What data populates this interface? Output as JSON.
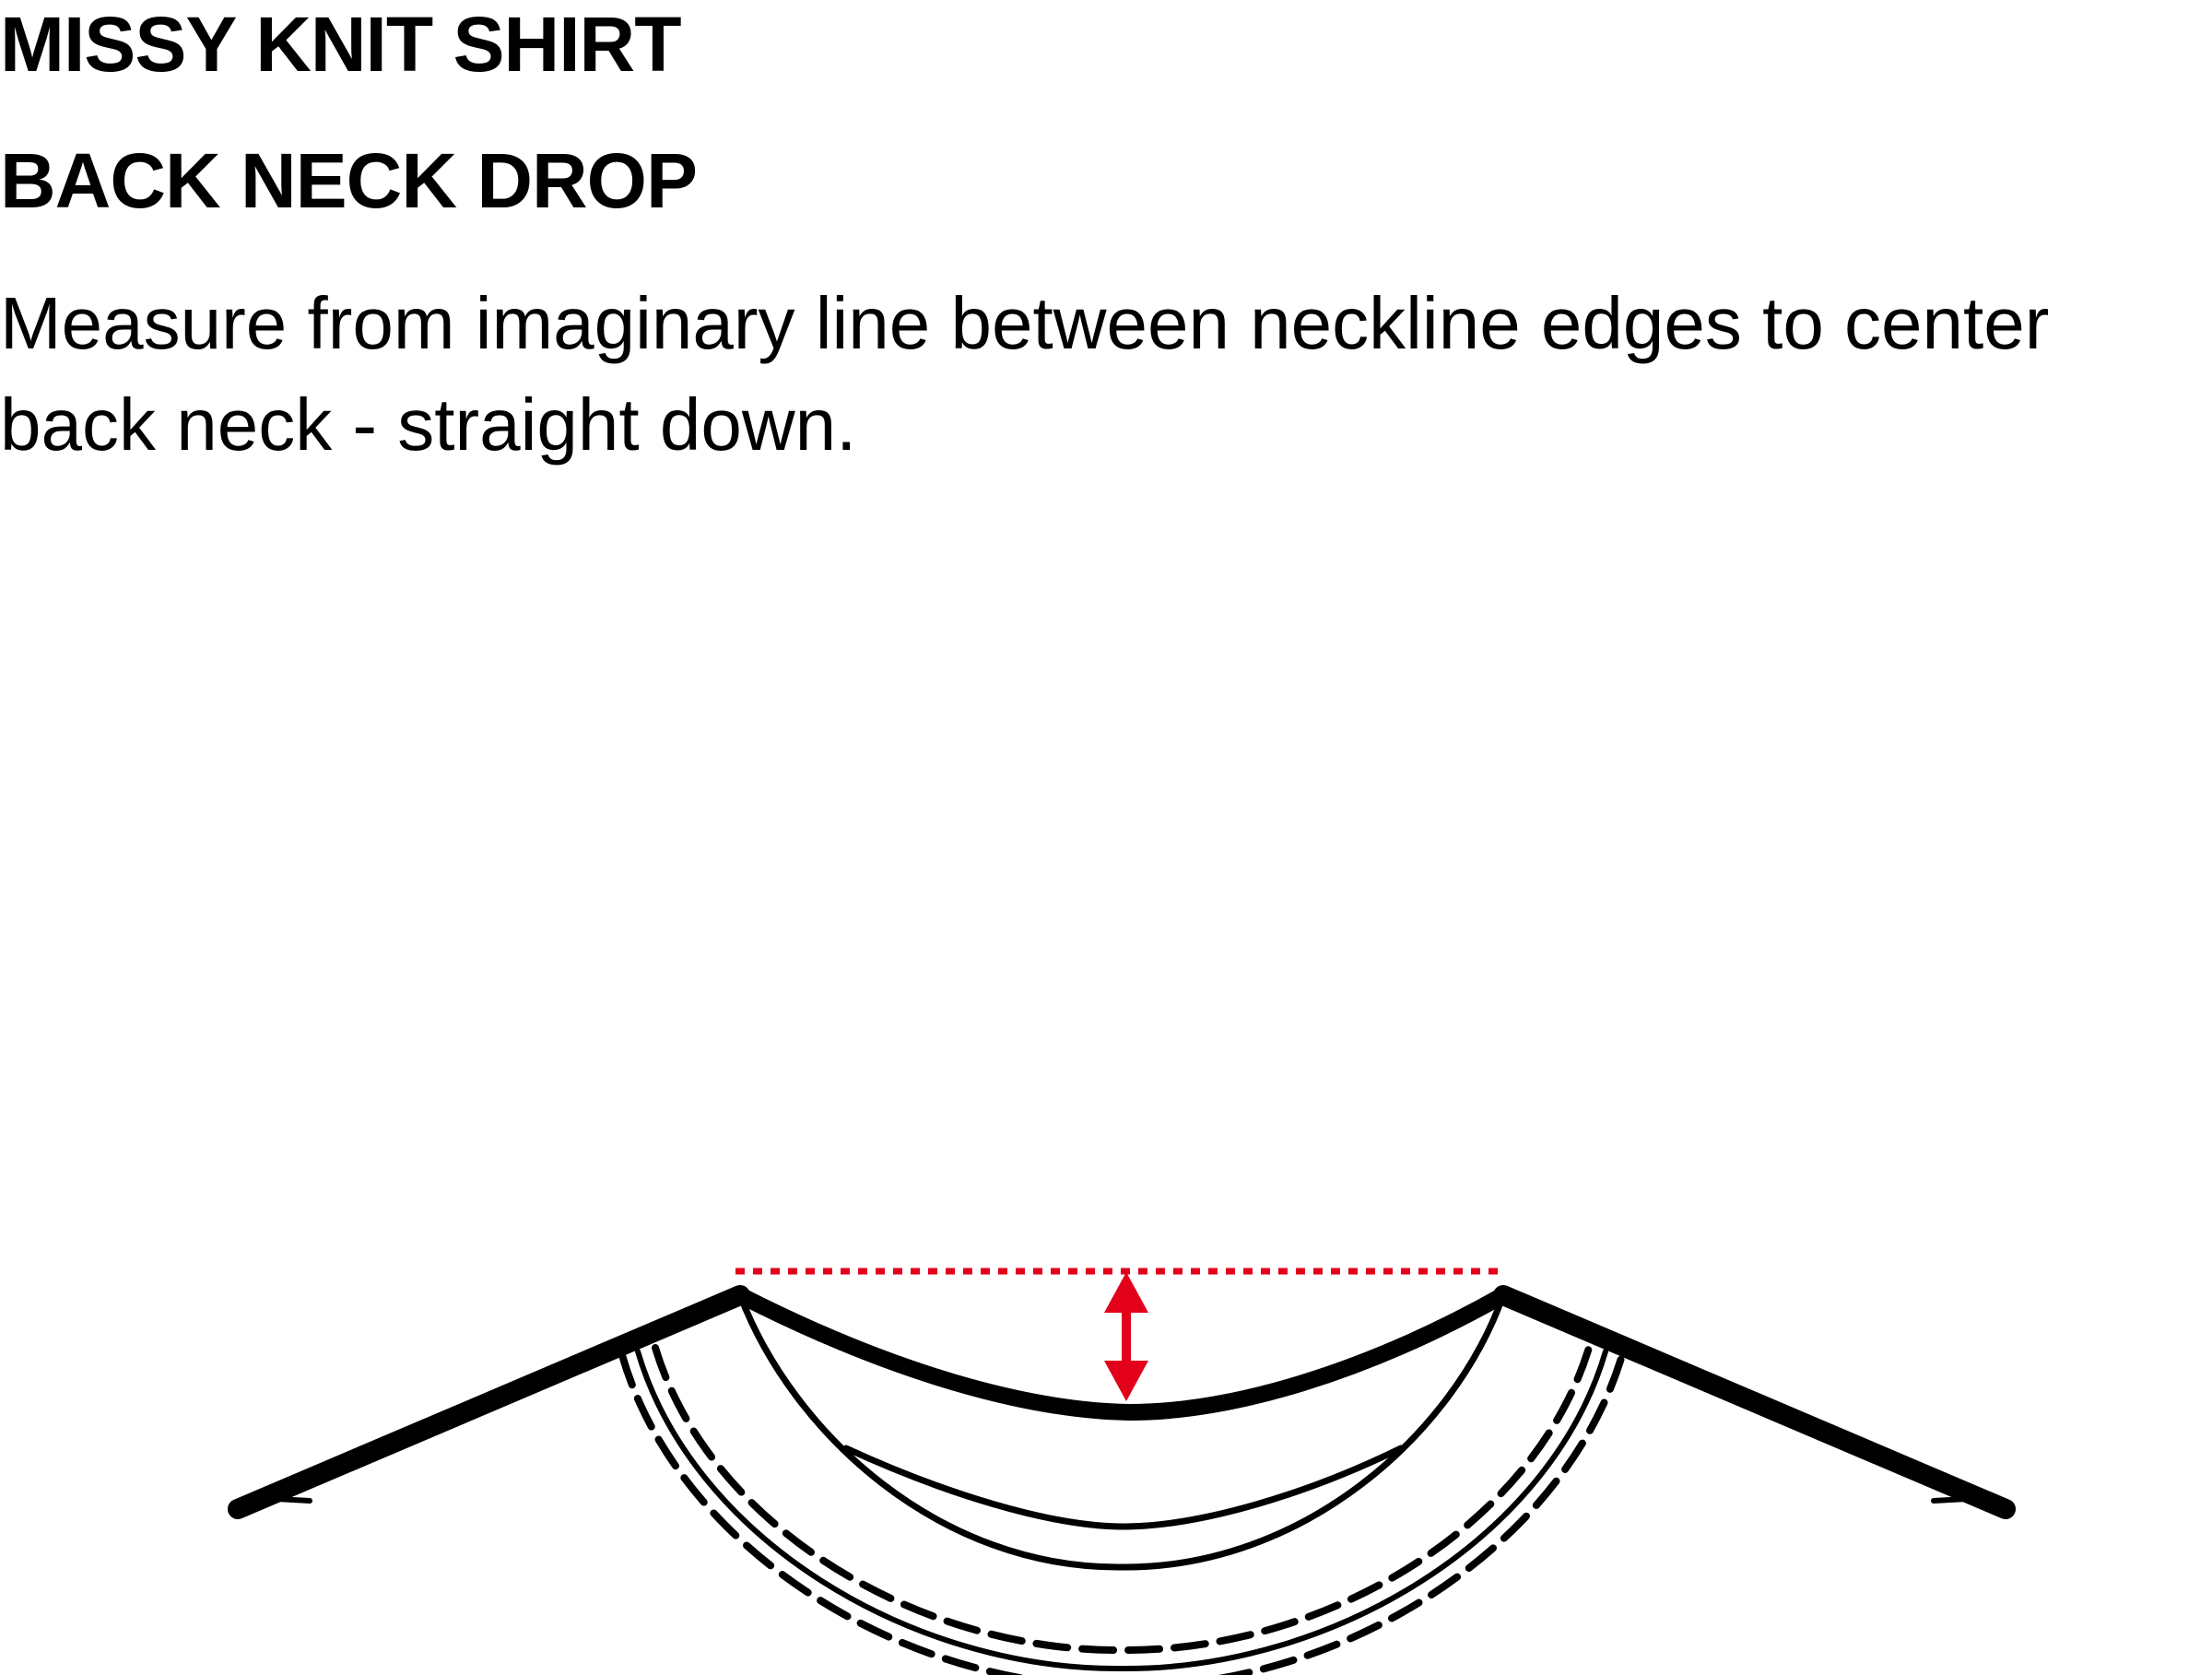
{
  "header": {
    "title": "MISSY KNIT SHIRT",
    "subtitle": "BACK NECK DROP"
  },
  "instructions": {
    "text": "Measure from imaginary line between neckline edges to center back neck - straight down."
  },
  "colors": {
    "line": "#000000",
    "measurement_accent": "#e2001a",
    "background": "#ffffff"
  },
  "diagram": {
    "subject": "back-neckline-flat-sketch",
    "measurement": "back-neck-drop",
    "reference_line_style": "dotted",
    "arrow_style": "double-headed"
  }
}
